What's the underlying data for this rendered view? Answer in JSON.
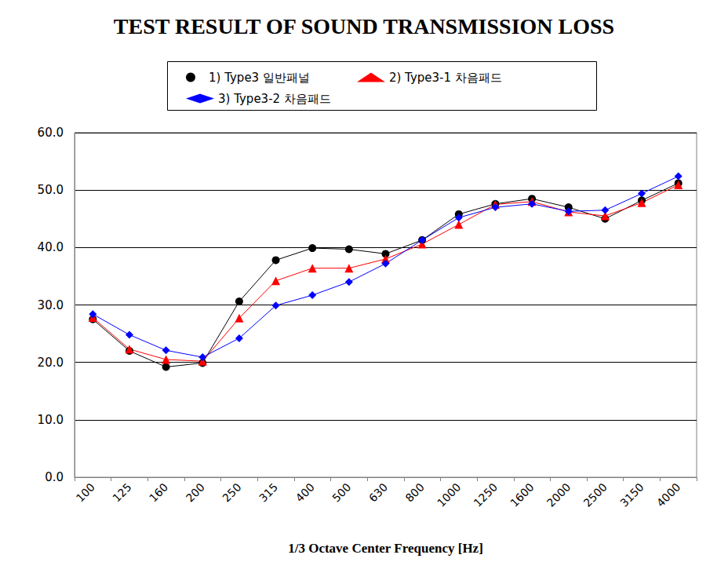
{
  "chart_data": {
    "type": "line",
    "title": "TEST RESULT OF SOUND TRANSMISSION LOSS",
    "x_label": "1/3 Octave Center Frequency [Hz]",
    "categories": [
      "100",
      "125",
      "160",
      "200",
      "250",
      "315",
      "400",
      "500",
      "630",
      "800",
      "1000",
      "1250",
      "1600",
      "2000",
      "2500",
      "3150",
      "4000"
    ],
    "series": [
      {
        "name": "1) Type3 일반패널",
        "color": "#000000",
        "marker": "circle",
        "values": [
          27.5,
          22.0,
          19.2,
          19.9,
          30.6,
          37.8,
          39.9,
          39.7,
          38.9,
          41.3,
          45.8,
          47.6,
          48.5,
          47.0,
          45.0,
          48.2,
          51.2
        ]
      },
      {
        "name": "2) Type3-1 차음패드",
        "color": "#ff0000",
        "marker": "triangle",
        "values": [
          27.8,
          22.3,
          20.5,
          20.2,
          27.7,
          34.2,
          36.4,
          36.4,
          38.0,
          40.6,
          44.0,
          47.5,
          48.0,
          46.2,
          45.5,
          47.8,
          50.9
        ]
      },
      {
        "name": "3) Type3-2 차음패드",
        "color": "#0000ff",
        "marker": "diamond",
        "values": [
          28.4,
          24.8,
          22.1,
          20.9,
          24.2,
          29.9,
          31.7,
          34.0,
          37.2,
          41.3,
          45.2,
          47.0,
          47.6,
          46.3,
          46.5,
          49.4,
          52.4
        ]
      }
    ],
    "ylim": [
      0,
      60
    ],
    "yticks": [
      {
        "value": 0,
        "label": "0.0"
      },
      {
        "value": 10,
        "label": "10.0"
      },
      {
        "value": 20,
        "label": "20.0"
      },
      {
        "value": 30,
        "label": "30.0"
      },
      {
        "value": 40,
        "label": "40.0"
      },
      {
        "value": 50,
        "label": "50.0"
      },
      {
        "value": 60,
        "label": "60.0"
      }
    ],
    "grid": true,
    "legend": "top"
  }
}
